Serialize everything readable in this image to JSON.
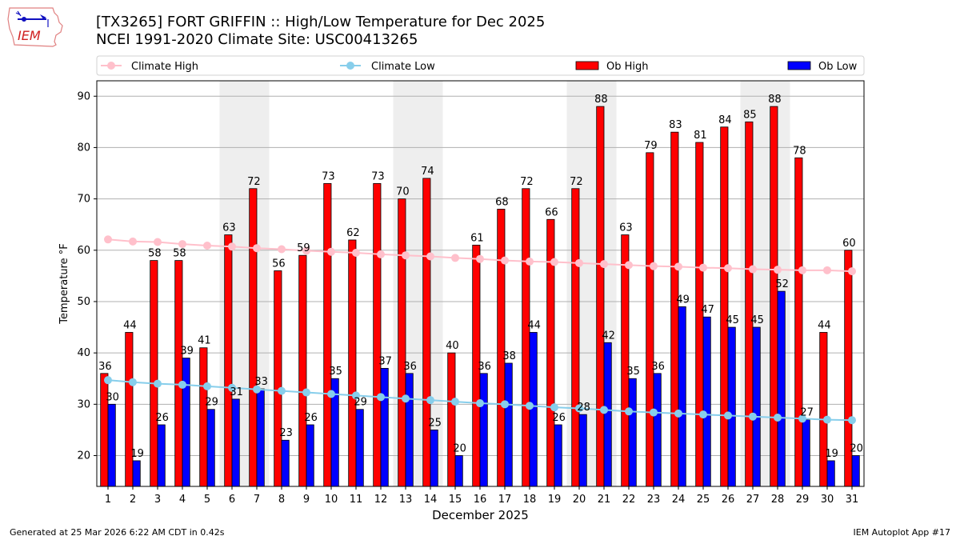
{
  "header": {
    "title_line1": "[TX3265] FORT GRIFFIN :: High/Low Temperature for Dec 2025",
    "title_line2": "NCEI 1991-2020 Climate Site: USC00413265",
    "logo_text": "IEM"
  },
  "footer": {
    "generated": "Generated at 25 Mar 2026 6:22 AM CDT in 0.42s",
    "app": "IEM Autoplot App #17"
  },
  "colors": {
    "ob_high": "#ff0000",
    "ob_low": "#0000ff",
    "climate_high": "#ffc0cb",
    "climate_low": "#87ceeb",
    "weekend_shade": "#eeeeee",
    "grid": "#b0b0b0"
  },
  "chart_data": {
    "type": "bar",
    "title": "[TX3265] FORT GRIFFIN :: High/Low Temperature for Dec 2025",
    "subtitle": "NCEI 1991-2020 Climate Site: USC00413265",
    "xlabel": "December 2025",
    "ylabel": "Temperature °F",
    "ylim": [
      14,
      93
    ],
    "yticks": [
      20,
      30,
      40,
      50,
      60,
      70,
      80,
      90
    ],
    "grid": true,
    "legend_position": "top",
    "legend": [
      "Climate High",
      "Climate Low",
      "Ob High",
      "Ob Low"
    ],
    "categories": [
      "1",
      "2",
      "3",
      "4",
      "5",
      "6",
      "7",
      "8",
      "9",
      "10",
      "11",
      "12",
      "13",
      "14",
      "15",
      "16",
      "17",
      "18",
      "19",
      "20",
      "21",
      "22",
      "23",
      "24",
      "25",
      "26",
      "27",
      "28",
      "29",
      "30",
      "31"
    ],
    "weekend_days": [
      6,
      7,
      13,
      14,
      20,
      21,
      27,
      28
    ],
    "series": [
      {
        "name": "Ob High",
        "kind": "bar",
        "values": [
          36,
          44,
          58,
          58,
          41,
          63,
          72,
          56,
          59,
          73,
          62,
          73,
          70,
          74,
          40,
          61,
          68,
          72,
          66,
          72,
          88,
          63,
          79,
          83,
          81,
          84,
          85,
          88,
          78,
          44,
          60
        ]
      },
      {
        "name": "Ob Low",
        "kind": "bar",
        "values": [
          30,
          19,
          26,
          39,
          29,
          31,
          33,
          23,
          26,
          35,
          29,
          37,
          36,
          25,
          20,
          36,
          38,
          44,
          26,
          28,
          42,
          35,
          36,
          49,
          47,
          45,
          45,
          52,
          27,
          19,
          20
        ]
      },
      {
        "name": "Climate High",
        "kind": "line",
        "values": [
          62.1,
          61.7,
          61.6,
          61.2,
          60.9,
          60.7,
          60.4,
          60.2,
          59.9,
          59.7,
          59.5,
          59.2,
          59.0,
          58.8,
          58.5,
          58.3,
          58.0,
          57.8,
          57.7,
          57.5,
          57.3,
          57.1,
          56.9,
          56.8,
          56.6,
          56.5,
          56.3,
          56.2,
          56.1,
          56.1,
          55.9
        ]
      },
      {
        "name": "Climate Low",
        "kind": "line",
        "values": [
          34.7,
          34.3,
          34.0,
          33.8,
          33.5,
          33.2,
          32.9,
          32.6,
          32.3,
          32.0,
          31.7,
          31.4,
          31.1,
          30.8,
          30.5,
          30.2,
          30.0,
          29.7,
          29.4,
          29.2,
          28.9,
          28.6,
          28.4,
          28.2,
          28.0,
          27.8,
          27.6,
          27.4,
          27.2,
          27.0,
          26.9
        ]
      }
    ]
  }
}
